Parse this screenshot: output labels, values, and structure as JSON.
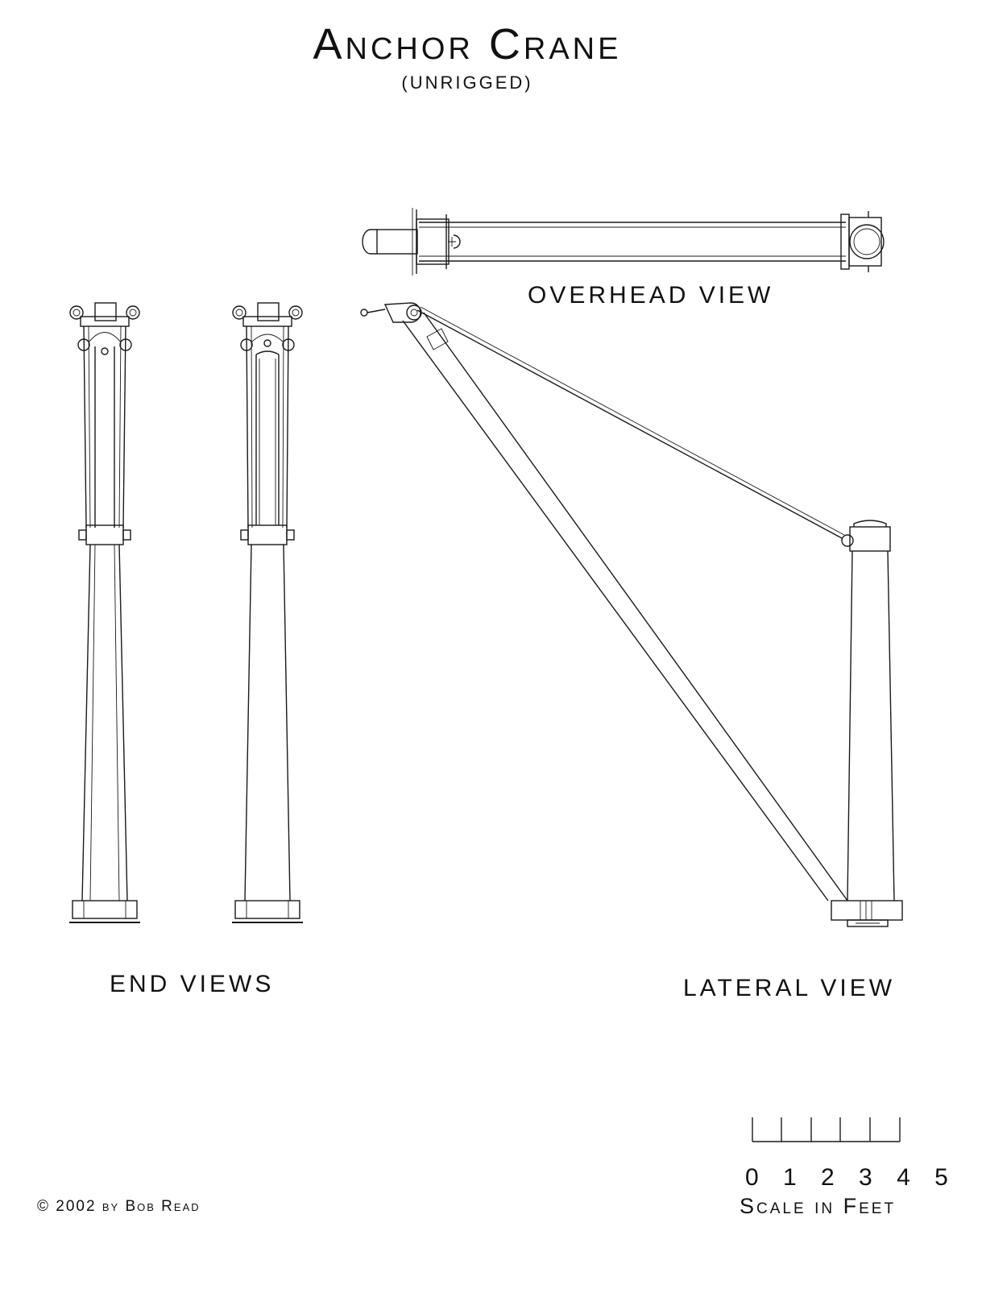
{
  "title": "Anchor Crane",
  "subtitle": "(UNRIGGED)",
  "views": {
    "overhead": "OVERHEAD VIEW",
    "end": "END VIEWS",
    "lateral": "LATERAL VIEW"
  },
  "scale": {
    "numbers": "0 1 2 3 4 5",
    "label": "Scale in Feet"
  },
  "copyright": "© 2002 by Bob Read"
}
